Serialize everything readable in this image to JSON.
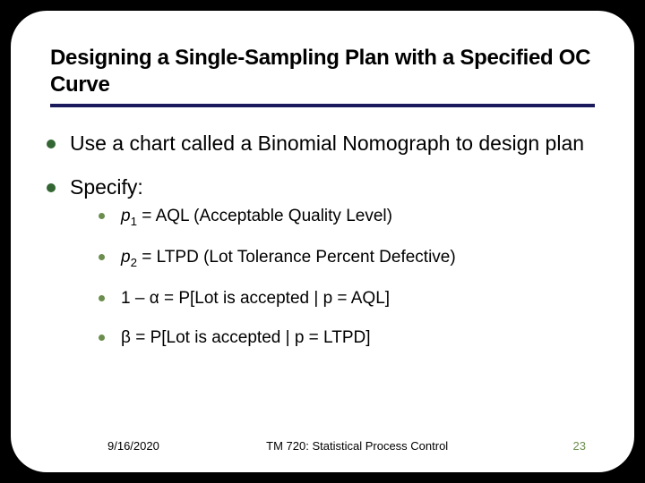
{
  "slide": {
    "title": "Designing a Single-Sampling Plan with a Specified OC Curve",
    "bullets": [
      {
        "text": "Use a chart called a Binomial Nomograph to design plan"
      },
      {
        "text": "Specify:"
      }
    ],
    "sub_bullets": [
      {
        "html": "<i>p</i><span class=\"subscript\">1</span> = AQL (Acceptable Quality Level)"
      },
      {
        "html": "<i>p</i><span class=\"subscript\">2</span> = LTPD (Lot Tolerance Percent Defective)"
      },
      {
        "html": "1 – α = P[Lot is accepted | p = AQL]"
      },
      {
        "html": "β = P[Lot is accepted | p = LTPD]"
      }
    ],
    "footer": {
      "date": "9/16/2020",
      "center": "TM 720: Statistical  Process Control",
      "page": "23"
    },
    "colors": {
      "bg": "#000000",
      "panel": "#ffffff",
      "rule": "#1a1a5c",
      "bullet1": "#336633",
      "bullet2": "#6b8e4e",
      "page_number": "#6b8e4e"
    }
  }
}
